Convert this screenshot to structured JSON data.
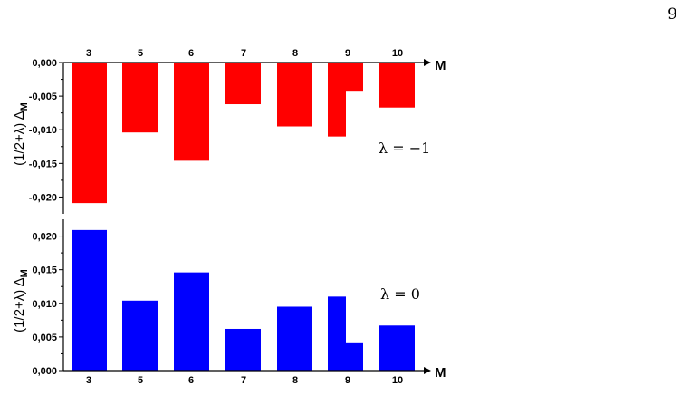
{
  "page_number": "9",
  "chart_data": [
    {
      "type": "bar",
      "categories": [
        "3",
        "5",
        "6",
        "7",
        "8",
        "9",
        "10"
      ],
      "bars": [
        {
          "category": "3",
          "value": -0.0209
        },
        {
          "category": "5",
          "value": -0.0104
        },
        {
          "category": "6",
          "value": -0.0146
        },
        {
          "category": "7",
          "value": -0.0062
        },
        {
          "category": "8",
          "value": -0.0095
        },
        {
          "category": "9",
          "value": -0.011
        },
        {
          "category": "9",
          "value": -0.0042
        },
        {
          "category": "10",
          "value": -0.0067
        }
      ],
      "ylim": [
        -0.0225,
        0.0
      ],
      "yticks": [
        0.0,
        -0.005,
        -0.01,
        -0.015,
        -0.02
      ],
      "ytick_labels": [
        "0,000",
        "-0,005",
        "-0,010",
        "-0,015",
        "-0,020"
      ],
      "xlabel": "M",
      "ylabel": "(1/2+λ) Δ",
      "ylabel_sub": "M",
      "annotation": "λ = −1",
      "color": "#ff0000",
      "category_axis_position": "top"
    },
    {
      "type": "bar",
      "categories": [
        "3",
        "5",
        "6",
        "7",
        "8",
        "9",
        "10"
      ],
      "bars": [
        {
          "category": "3",
          "value": 0.0209
        },
        {
          "category": "5",
          "value": 0.0104
        },
        {
          "category": "6",
          "value": 0.0146
        },
        {
          "category": "7",
          "value": 0.0062
        },
        {
          "category": "8",
          "value": 0.0095
        },
        {
          "category": "9",
          "value": 0.011
        },
        {
          "category": "9",
          "value": 0.0042
        },
        {
          "category": "10",
          "value": 0.0067
        }
      ],
      "ylim": [
        0.0,
        0.0225
      ],
      "yticks": [
        0.0,
        0.005,
        0.01,
        0.015,
        0.02
      ],
      "ytick_labels": [
        "0,000",
        "0,005",
        "0,010",
        "0,015",
        "0,020"
      ],
      "xlabel": "M",
      "ylabel": "(1/2+λ) Δ",
      "ylabel_sub": "M",
      "annotation": "λ = 0",
      "color": "#0000ff",
      "category_axis_position": "bottom"
    }
  ]
}
